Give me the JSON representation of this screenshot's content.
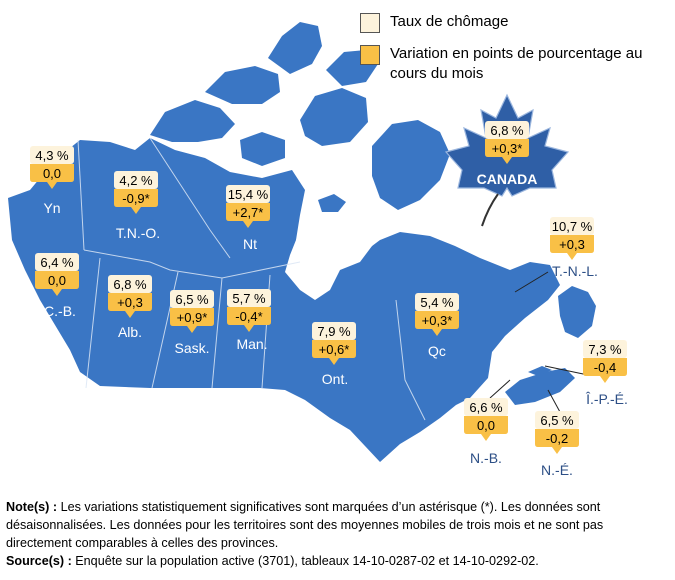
{
  "legend": {
    "rate_label": "Taux de chômage",
    "change_label": "Variation en points de pourcentage au cours du mois",
    "rate_color": "#fdf3dc",
    "change_color": "#f9c046"
  },
  "colors": {
    "map": "#3a76c4",
    "water": "#ffffff",
    "label": "#2d4f86"
  },
  "canada_label": "CANADA",
  "notes": {
    "note_label": "Note(s) :",
    "note_text": "Les variations statistiquement significatives sont marquées d’un astérisque (*). Les données sont désaisonnalisées. Les données pour les territoires sont des moyennes mobiles de trois mois et ne sont pas directement comparables à celles des provinces.",
    "source_label": "Source(s) :",
    "source_text": "Enquête sur la population active (3701), tableaux 14-10-0287-02 et 14-10-0292-02."
  },
  "chart_data": {
    "type": "map",
    "series": [
      {
        "name": "Taux de chômage",
        "unit": "%"
      },
      {
        "name": "Variation en points de pourcentage au cours du mois"
      }
    ],
    "regions": [
      {
        "code": "CANADA",
        "rate": "6,8 %",
        "change": "+0,3*"
      },
      {
        "code": "Yn",
        "rate": "4,3 %",
        "change": "0,0"
      },
      {
        "code": "T.N.-O.",
        "rate": "4,2 %",
        "change": "-0,9*"
      },
      {
        "code": "Nt",
        "rate": "15,4 %",
        "change": "+2,7*"
      },
      {
        "code": "C.-B.",
        "rate": "6,4 %",
        "change": "0,0"
      },
      {
        "code": "Alb.",
        "rate": "6,8 %",
        "change": "+0,3"
      },
      {
        "code": "Sask.",
        "rate": "6,5 %",
        "change": "+0,9*"
      },
      {
        "code": "Man.",
        "rate": "5,7 %",
        "change": "-0,4*"
      },
      {
        "code": "Ont.",
        "rate": "7,9 %",
        "change": "+0,6*"
      },
      {
        "code": "Qc",
        "rate": "5,4 %",
        "change": "+0,3*"
      },
      {
        "code": "T.-N.-L.",
        "rate": "10,7 %",
        "change": "+0,3"
      },
      {
        "code": "Î.-P.-É.",
        "rate": "7,3 %",
        "change": "-0,4"
      },
      {
        "code": "N.-B.",
        "rate": "6,6 %",
        "change": "0,0"
      },
      {
        "code": "N.-É.",
        "rate": "6,5 %",
        "change": "-0,2"
      }
    ]
  }
}
